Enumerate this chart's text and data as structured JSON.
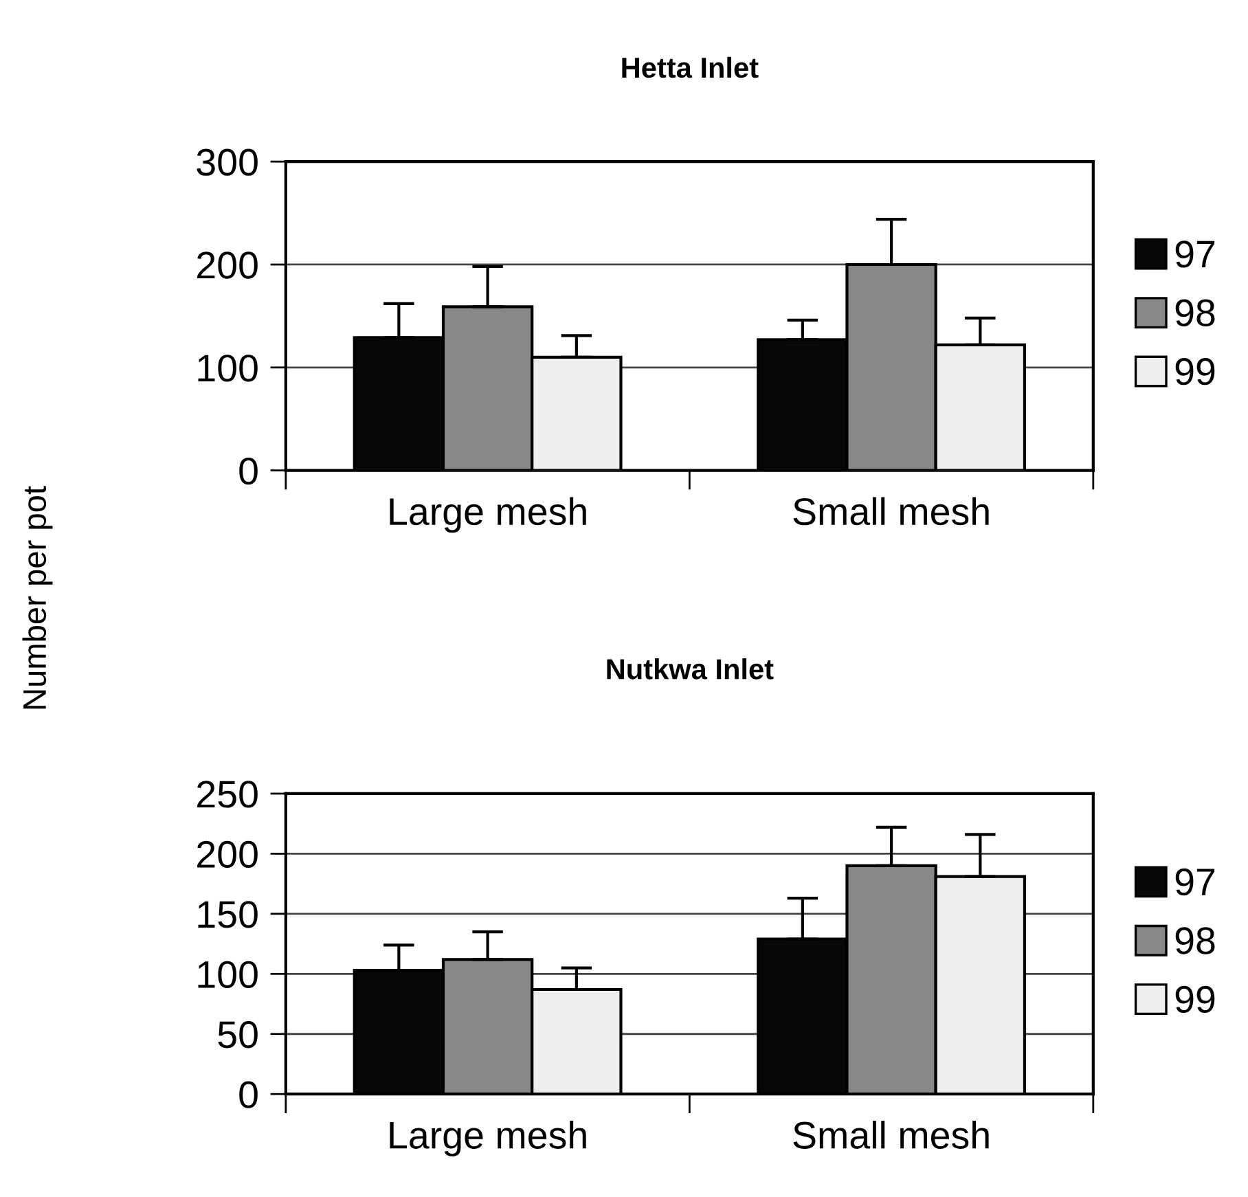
{
  "chart_data": [
    {
      "type": "bar",
      "title": "Hetta Inlet",
      "ylabel": "Number per pot",
      "categories": [
        "Large mesh",
        "Small mesh"
      ],
      "series": [
        {
          "name": "97",
          "color": "#080808",
          "values": [
            129,
            127
          ],
          "errors": [
            [
              129,
              162
            ],
            [
              127,
              146
            ]
          ]
        },
        {
          "name": "98",
          "color": "#888888",
          "values": [
            159,
            200
          ],
          "errors": [
            [
              159,
              198
            ],
            [
              200,
              244
            ]
          ]
        },
        {
          "name": "99",
          "color": "#eeeeee",
          "values": [
            110,
            122
          ],
          "errors": [
            [
              110,
              131
            ],
            [
              122,
              148
            ]
          ]
        }
      ],
      "ylim": [
        0,
        300
      ],
      "yticks": [
        0,
        100,
        200,
        300
      ],
      "grid": "y",
      "legend": "right"
    },
    {
      "type": "bar",
      "title": "Nutkwa Inlet",
      "categories": [
        "Large mesh",
        "Small mesh"
      ],
      "series": [
        {
          "name": "97",
          "color": "#080808",
          "values": [
            103,
            129
          ],
          "errors": [
            [
              103,
              124
            ],
            [
              129,
              163
            ]
          ]
        },
        {
          "name": "98",
          "color": "#888888",
          "values": [
            112,
            190
          ],
          "errors": [
            [
              112,
              135
            ],
            [
              190,
              222
            ]
          ]
        },
        {
          "name": "99",
          "color": "#eeeeee",
          "values": [
            87,
            181
          ],
          "errors": [
            [
              87,
              105
            ],
            [
              181,
              216
            ]
          ]
        }
      ],
      "ylim": [
        0,
        250
      ],
      "yticks": [
        0,
        50,
        100,
        150,
        200,
        250
      ],
      "grid": "y",
      "legend": "right"
    }
  ]
}
